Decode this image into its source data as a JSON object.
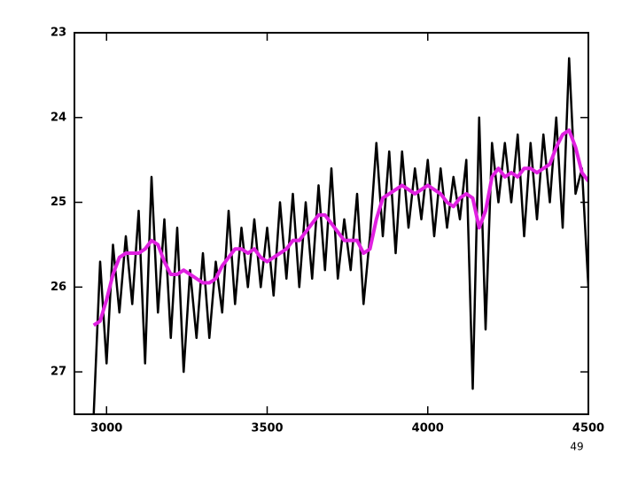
{
  "chart_data": {
    "type": "line",
    "x": [
      2960,
      2980,
      3000,
      3020,
      3040,
      3060,
      3080,
      3100,
      3120,
      3140,
      3160,
      3180,
      3200,
      3220,
      3240,
      3260,
      3280,
      3300,
      3320,
      3340,
      3360,
      3380,
      3400,
      3420,
      3440,
      3460,
      3480,
      3500,
      3520,
      3540,
      3560,
      3580,
      3600,
      3620,
      3640,
      3660,
      3680,
      3700,
      3720,
      3740,
      3760,
      3780,
      3800,
      3820,
      3840,
      3860,
      3880,
      3900,
      3920,
      3940,
      3960,
      3980,
      4000,
      4020,
      4040,
      4060,
      4080,
      4100,
      4120,
      4140,
      4160,
      4180,
      4200,
      4220,
      4240,
      4260,
      4280,
      4300,
      4320,
      4340,
      4360,
      4380,
      4400,
      4420,
      4440,
      4460,
      4480,
      4500
    ],
    "series": [
      {
        "color": "#000000",
        "values": [
          27.5,
          25.7,
          26.9,
          25.5,
          26.3,
          25.4,
          26.2,
          25.1,
          26.9,
          24.7,
          26.3,
          25.2,
          26.6,
          25.3,
          27.0,
          25.8,
          26.6,
          25.6,
          26.6,
          25.7,
          26.3,
          25.1,
          26.2,
          25.3,
          26.0,
          25.2,
          26.0,
          25.3,
          26.1,
          25.0,
          25.9,
          24.9,
          26.0,
          25.0,
          25.9,
          24.8,
          25.8,
          24.6,
          25.9,
          25.2,
          25.8,
          24.9,
          26.2,
          25.4,
          24.3,
          25.4,
          24.4,
          25.6,
          24.4,
          25.3,
          24.6,
          25.2,
          24.5,
          25.4,
          24.6,
          25.3,
          24.7,
          25.2,
          24.5,
          27.2,
          24.0,
          26.5,
          24.3,
          25.0,
          24.3,
          25.0,
          24.2,
          25.4,
          24.3,
          25.2,
          24.2,
          25.0,
          24.0,
          25.3,
          23.3,
          24.9,
          24.6,
          26.0
        ]
      },
      {
        "color": "#e020e0",
        "values": [
          26.45,
          26.4,
          26.15,
          25.85,
          25.65,
          25.6,
          25.6,
          25.6,
          25.55,
          25.45,
          25.5,
          25.7,
          25.85,
          25.85,
          25.8,
          25.85,
          25.9,
          25.95,
          25.95,
          25.9,
          25.75,
          25.65,
          25.55,
          25.55,
          25.6,
          25.55,
          25.65,
          25.7,
          25.65,
          25.6,
          25.55,
          25.45,
          25.45,
          25.35,
          25.25,
          25.15,
          25.15,
          25.25,
          25.35,
          25.45,
          25.45,
          25.45,
          25.6,
          25.55,
          25.2,
          24.95,
          24.9,
          24.85,
          24.8,
          24.85,
          24.9,
          24.85,
          24.8,
          24.85,
          24.9,
          25.0,
          25.05,
          24.95,
          24.9,
          24.95,
          25.3,
          25.1,
          24.7,
          24.6,
          24.7,
          24.65,
          24.7,
          24.6,
          24.6,
          24.65,
          24.6,
          24.55,
          24.35,
          24.2,
          24.15,
          24.35,
          24.65,
          24.75
        ]
      }
    ],
    "xlim": [
      2900,
      4500
    ],
    "xticks": [
      3000,
      3500,
      4000,
      4500
    ],
    "ylim": [
      27.5,
      23
    ],
    "yticks": [
      23,
      24,
      25,
      26,
      27
    ],
    "page_number": "49"
  }
}
